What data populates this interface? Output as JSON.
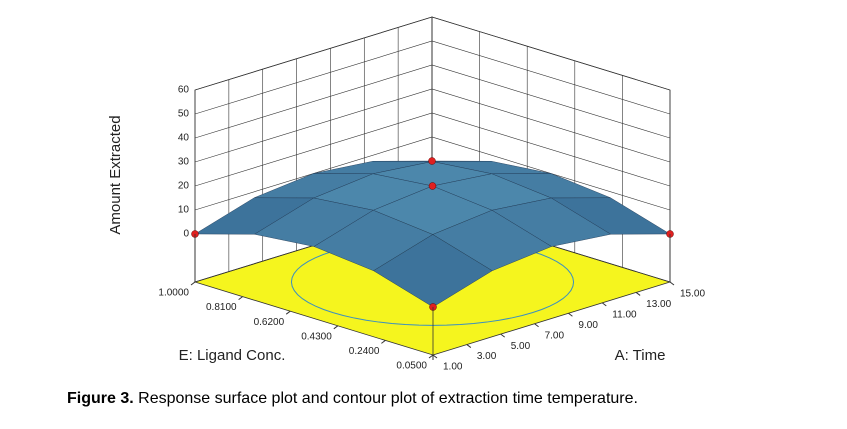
{
  "chart_data": {
    "type": "surface",
    "zlabel": "Amount Extracted",
    "xlabel": "A: Time",
    "ylabel": "E: Ligand Conc.",
    "x": [
      1,
      4.5,
      8,
      11.5,
      15
    ],
    "y": [
      0.05,
      0.2875,
      0.525,
      0.7625,
      1
    ],
    "z": [
      [
        0,
        7.5,
        10,
        7.5,
        0
      ],
      [
        7.5,
        15,
        17.5,
        15,
        7.5
      ],
      [
        10,
        17.5,
        20,
        17.5,
        10
      ],
      [
        7.5,
        15,
        17.5,
        15,
        7.5
      ],
      [
        0,
        7.5,
        10,
        7.5,
        0
      ]
    ],
    "xlim": [
      1,
      15
    ],
    "ylim": [
      0.05,
      1
    ],
    "zlim": [
      -20,
      60
    ],
    "xticks": [
      {
        "value": 1,
        "label": "1.00"
      },
      {
        "value": 3,
        "label": "3.00"
      },
      {
        "value": 5,
        "label": "5.00"
      },
      {
        "value": 7,
        "label": "7.00"
      },
      {
        "value": 9,
        "label": "9.00"
      },
      {
        "value": 11,
        "label": "11.00"
      },
      {
        "value": 13,
        "label": "13.00"
      },
      {
        "value": 15,
        "label": "15.00"
      }
    ],
    "yticks": [
      {
        "value": 0.05,
        "label": "0.0500"
      },
      {
        "value": 0.24,
        "label": "0.2400"
      },
      {
        "value": 0.43,
        "label": "0.4300"
      },
      {
        "value": 0.62,
        "label": "0.6200"
      },
      {
        "value": 0.81,
        "label": "0.8100"
      },
      {
        "value": 1,
        "label": "1.0000"
      }
    ],
    "zticks": [
      0,
      10,
      20,
      30,
      40,
      50,
      60
    ],
    "grid": true,
    "floor_color": "#f5f51e",
    "point_color": "#e02020"
  },
  "caption": {
    "label": "Figure 3.",
    "text": "Response surface plot and contour plot of extraction time temperature."
  }
}
